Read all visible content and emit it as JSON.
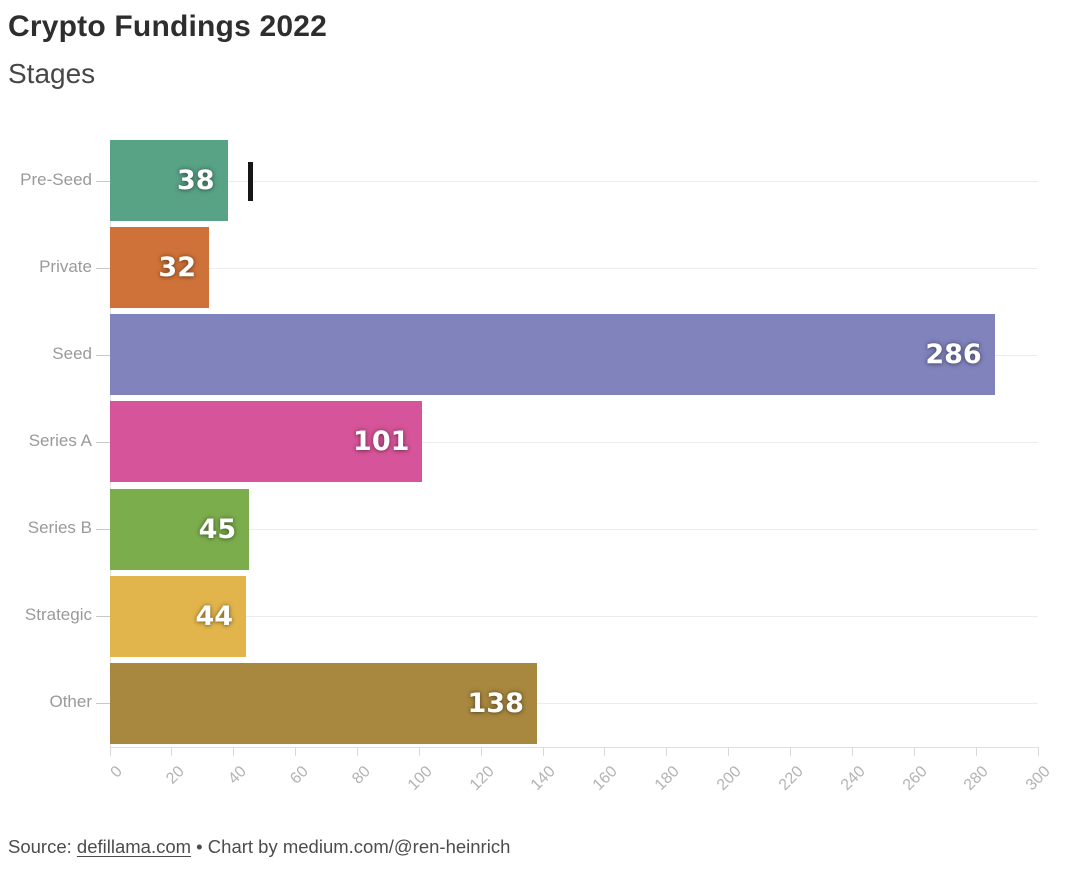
{
  "header": {
    "title": "Crypto Fundings 2022",
    "subtitle": "Stages"
  },
  "chart_data": {
    "type": "bar",
    "orientation": "horizontal",
    "title": "Crypto Fundings 2022",
    "subtitle": "Stages",
    "categories": [
      "Pre-Seed",
      "Private",
      "Seed",
      "Series A",
      "Series B",
      "Strategic",
      "Other"
    ],
    "values": [
      38,
      32,
      286,
      101,
      45,
      44,
      138
    ],
    "bar_colors": [
      "#58a286",
      "#cf7239",
      "#8083bc",
      "#d65499",
      "#7bad4d",
      "#e2b54c",
      "#a8883f"
    ],
    "value_label_color": "#ffffff",
    "value_label_position": "inside-end",
    "xlim": [
      0,
      300
    ],
    "x_ticks": [
      0,
      20,
      40,
      60,
      80,
      100,
      120,
      140,
      160,
      180,
      200,
      220,
      240,
      260,
      280,
      300
    ],
    "grid": "horizontal-category-gridlines",
    "legend": "none"
  },
  "footer": {
    "source_prefix": "Source: ",
    "source_link": "defillama.com",
    "credit": " • Chart by medium.com/@ren-heinrich"
  }
}
